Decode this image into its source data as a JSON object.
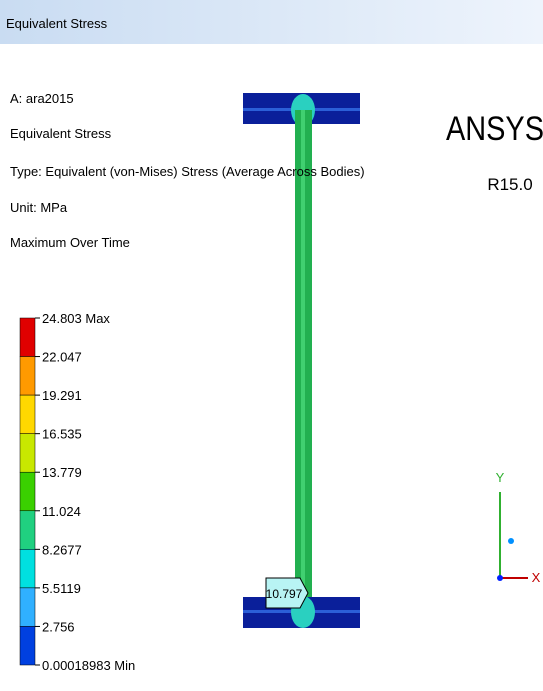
{
  "header": {
    "title": "Equivalent Stress"
  },
  "info": [
    "A: ara2015",
    "Equivalent Stress",
    "Type: Equivalent (von-Mises) Stress (Average Across Bodies)",
    "Unit: MPa",
    "Maximum Over Time"
  ],
  "legend": {
    "labels": [
      "24.803 Max",
      "22.047",
      "19.291",
      "16.535",
      "13.779",
      "11.024",
      "8.2677",
      "5.5119",
      "2.756",
      "0.00018983 Min"
    ],
    "colors": [
      "#e00000",
      "#ff9a00",
      "#ffd800",
      "#c8e800",
      "#3ad000",
      "#20d080",
      "#00e0e0",
      "#30b0ff",
      "#0040e0"
    ]
  },
  "logo": {
    "name": "ANSYS",
    "version": "R15.0"
  },
  "probe": "10.797",
  "triad": {
    "y": "Y",
    "x": "X"
  }
}
